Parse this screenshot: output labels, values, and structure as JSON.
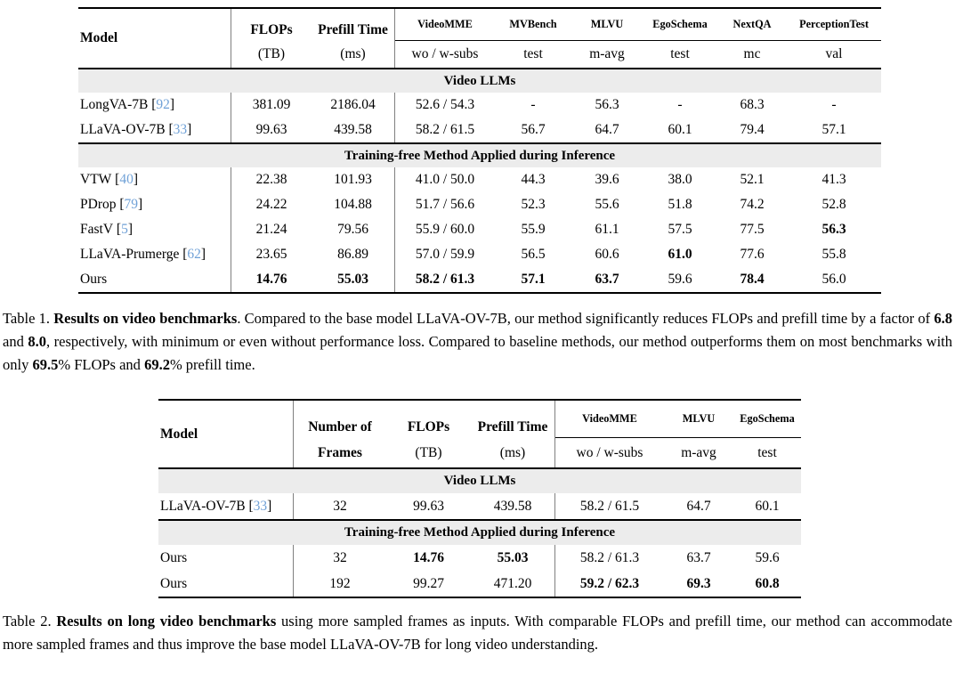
{
  "colors": {
    "citation_blue": "#70a1d7",
    "section_band_gray": "#ececec",
    "rule_black": "#000000",
    "divider_gray": "#808080"
  },
  "table1": {
    "headers": {
      "model": "Model",
      "flops_top": "FLOPs",
      "flops_sub": "(TB)",
      "prefill_top": "Prefill Time",
      "prefill_sub": "(ms)",
      "benchmarks": [
        {
          "name": "VideoMME",
          "sub": "wo / w-subs"
        },
        {
          "name": "MVBench",
          "sub": "test"
        },
        {
          "name": "MLVU",
          "sub": "m-avg"
        },
        {
          "name": "EgoSchema",
          "sub": "test"
        },
        {
          "name": "NextQA",
          "sub": "mc"
        },
        {
          "name": "PerceptionTest",
          "sub": "val"
        }
      ]
    },
    "sections": [
      {
        "title": "Video LLMs",
        "rows": [
          {
            "model": "LongVA-7B",
            "cite": "92",
            "cells": [
              {
                "t": "381.09",
                "b": 0
              },
              {
                "t": "2186.04",
                "b": 0
              },
              {
                "t": "52.6 / 54.3",
                "b": 0
              },
              {
                "t": "-",
                "b": 0
              },
              {
                "t": "56.3",
                "b": 0
              },
              {
                "t": "-",
                "b": 0
              },
              {
                "t": "68.3",
                "b": 0
              },
              {
                "t": "-",
                "b": 0
              }
            ]
          },
          {
            "model": "LLaVA-OV-7B",
            "cite": "33",
            "cells": [
              {
                "t": "99.63",
                "b": 0
              },
              {
                "t": "439.58",
                "b": 0
              },
              {
                "t": "58.2 / 61.5",
                "b": 0
              },
              {
                "t": "56.7",
                "b": 0
              },
              {
                "t": "64.7",
                "b": 0
              },
              {
                "t": "60.1",
                "b": 0
              },
              {
                "t": "79.4",
                "b": 0
              },
              {
                "t": "57.1",
                "b": 0
              }
            ]
          }
        ]
      },
      {
        "title": "Training-free Method Applied during Inference",
        "rows": [
          {
            "model": "VTW",
            "cite": "40",
            "cells": [
              {
                "t": "22.38",
                "b": 0
              },
              {
                "t": "101.93",
                "b": 0
              },
              {
                "t": "41.0 / 50.0",
                "b": 0
              },
              {
                "t": "44.3",
                "b": 0
              },
              {
                "t": "39.6",
                "b": 0
              },
              {
                "t": "38.0",
                "b": 0
              },
              {
                "t": "52.1",
                "b": 0
              },
              {
                "t": "41.3",
                "b": 0
              }
            ]
          },
          {
            "model": "PDrop",
            "cite": "79",
            "cells": [
              {
                "t": "24.22",
                "b": 0
              },
              {
                "t": "104.88",
                "b": 0
              },
              {
                "t": "51.7 / 56.6",
                "b": 0
              },
              {
                "t": "52.3",
                "b": 0
              },
              {
                "t": "55.6",
                "b": 0
              },
              {
                "t": "51.8",
                "b": 0
              },
              {
                "t": "74.2",
                "b": 0
              },
              {
                "t": "52.8",
                "b": 0
              }
            ]
          },
          {
            "model": "FastV",
            "cite": "5",
            "cells": [
              {
                "t": "21.24",
                "b": 0
              },
              {
                "t": "79.56",
                "b": 0
              },
              {
                "t": "55.9 / 60.0",
                "b": 0
              },
              {
                "t": "55.9",
                "b": 0
              },
              {
                "t": "61.1",
                "b": 0
              },
              {
                "t": "57.5",
                "b": 0
              },
              {
                "t": "77.5",
                "b": 0
              },
              {
                "t": "56.3",
                "b": 1
              }
            ]
          },
          {
            "model": "LLaVA-Prumerge",
            "cite": "62",
            "cells": [
              {
                "t": "23.65",
                "b": 0
              },
              {
                "t": "86.89",
                "b": 0
              },
              {
                "t": "57.0 / 59.9",
                "b": 0
              },
              {
                "t": "56.5",
                "b": 0
              },
              {
                "t": "60.6",
                "b": 0
              },
              {
                "t": "61.0",
                "b": 1
              },
              {
                "t": "77.6",
                "b": 0
              },
              {
                "t": "55.8",
                "b": 0
              }
            ]
          },
          {
            "model": "Ours",
            "cite": null,
            "cells": [
              {
                "t": "14.76",
                "b": 1
              },
              {
                "t": "55.03",
                "b": 1
              },
              {
                "t": "58.2 / 61.3",
                "b": 1
              },
              {
                "t": "57.1",
                "b": 1
              },
              {
                "t": "63.7",
                "b": 1
              },
              {
                "t": "59.6",
                "b": 0
              },
              {
                "t": "78.4",
                "b": 1
              },
              {
                "t": "56.0",
                "b": 0
              }
            ]
          }
        ]
      }
    ]
  },
  "caption1": {
    "segments": [
      {
        "t": "Table 1. ",
        "b": 0
      },
      {
        "t": "Results on video benchmarks",
        "b": 1
      },
      {
        "t": ". Compared to the base model LLaVA-OV-7B, our method significantly reduces FLOPs and prefill time by a factor of ",
        "b": 0
      },
      {
        "t": "6.8",
        "b": 1
      },
      {
        "t": " and ",
        "b": 0
      },
      {
        "t": "8.0",
        "b": 1
      },
      {
        "t": ", respectively, with minimum or even without performance loss. Compared to baseline methods, our method outperforms them on most benchmarks with only ",
        "b": 0
      },
      {
        "t": "69.5",
        "b": 1
      },
      {
        "t": "% FLOPs and ",
        "b": 0
      },
      {
        "t": "69.2",
        "b": 1
      },
      {
        "t": "% prefill time.",
        "b": 0
      }
    ]
  },
  "table2": {
    "headers": {
      "model": "Model",
      "frames_top": "Number of",
      "frames_sub": "Frames",
      "flops_top": "FLOPs",
      "flops_sub": "(TB)",
      "prefill_top": "Prefill Time",
      "prefill_sub": "(ms)",
      "benchmarks": [
        {
          "name": "VideoMME",
          "sub": "wo / w-subs"
        },
        {
          "name": "MLVU",
          "sub": "m-avg"
        },
        {
          "name": "EgoSchema",
          "sub": "test"
        }
      ]
    },
    "sections": [
      {
        "title": "Video LLMs",
        "rows": [
          {
            "model": "LLaVA-OV-7B",
            "cite": "33",
            "cells": [
              {
                "t": "32",
                "b": 0
              },
              {
                "t": "99.63",
                "b": 0
              },
              {
                "t": "439.58",
                "b": 0
              },
              {
                "t": "58.2 / 61.5",
                "b": 0
              },
              {
                "t": "64.7",
                "b": 0
              },
              {
                "t": "60.1",
                "b": 0
              }
            ]
          }
        ]
      },
      {
        "title": "Training-free Method Applied during Inference",
        "rows": [
          {
            "model": "Ours",
            "cite": null,
            "cells": [
              {
                "t": "32",
                "b": 0
              },
              {
                "t": "14.76",
                "b": 1
              },
              {
                "t": "55.03",
                "b": 1
              },
              {
                "t": "58.2 / 61.3",
                "b": 0
              },
              {
                "t": "63.7",
                "b": 0
              },
              {
                "t": "59.6",
                "b": 0
              }
            ]
          },
          {
            "model": "Ours",
            "cite": null,
            "cells": [
              {
                "t": "192",
                "b": 0
              },
              {
                "t": "99.27",
                "b": 0
              },
              {
                "t": "471.20",
                "b": 0
              },
              {
                "t": "59.2 / 62.3",
                "b": 1
              },
              {
                "t": "69.3",
                "b": 1
              },
              {
                "t": "60.8",
                "b": 1
              }
            ]
          }
        ]
      }
    ]
  },
  "caption2": {
    "segments": [
      {
        "t": "Table 2. ",
        "b": 0
      },
      {
        "t": "Results on long video benchmarks",
        "b": 1
      },
      {
        "t": " using more sampled frames as inputs. With comparable FLOPs and prefill time, our method can accommodate more sampled frames and thus improve the base model LLaVA-OV-7B for long video understanding.",
        "b": 0
      }
    ]
  }
}
